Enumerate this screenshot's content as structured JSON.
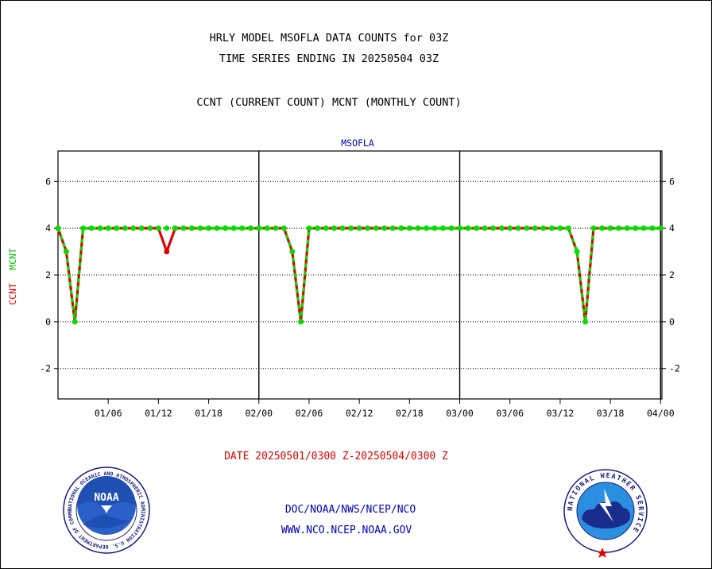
{
  "header": {
    "title_line1": "HRLY MODEL MSOFLA DATA COUNTS for 03Z",
    "title_line2": "TIME SERIES ENDING IN 20250504 03Z",
    "subtitle": "CCNT (CURRENT COUNT) MCNT (MONTHLY COUNT)"
  },
  "footer": {
    "date_range": "DATE 20250501/0300 Z-20250504/0300 Z",
    "org_path": "DOC/NOAA/NWS/NCEP/NCO",
    "website": "WWW.NCO.NCEP.NOAA.GOV"
  },
  "logos": {
    "noaa_text": "NOAA",
    "noaa_ring": "NATIONAL OCEANIC AND ATMOSPHERIC ADMINISTRATION U.S. DEPARTMENT OF COMMERCE",
    "nws_ring": "NATIONAL WEATHER SERVICE"
  },
  "colors": {
    "ccnt": "#e00000",
    "mcnt": "#00e000",
    "title": "#000000",
    "station_label": "#0000c0",
    "date_label": "#e00000",
    "footer_text": "#0000c0"
  },
  "chart_data": {
    "type": "line",
    "title": "MSOFLA",
    "ylabel_series": [
      "CCNT",
      "MCNT"
    ],
    "ylim": [
      -3.3,
      7.3
    ],
    "yticks": [
      -2,
      0,
      2,
      4,
      6
    ],
    "ytick_labels": [
      "-2",
      "0",
      "2",
      "4",
      "6"
    ],
    "x_unit": "3-hourly steps from 01/00",
    "xlim": [
      0,
      90.2
    ],
    "xtick_positions": [
      6,
      12,
      18,
      24,
      30,
      36,
      42,
      48,
      54,
      60,
      66,
      72,
      78,
      84
    ],
    "xtick_labels": [
      "01/06",
      "01/12",
      "01/18",
      "02/00",
      "02/06",
      "02/12",
      "02/18",
      "03/00",
      "03/06",
      "03/12",
      "03/18",
      "04/00"
    ],
    "xtick_label_positions": [
      2,
      4,
      6,
      8,
      10,
      12,
      14,
      16,
      18,
      20,
      22,
      24
    ],
    "day_boundaries": [
      8,
      16,
      24
    ],
    "grid": "horizontal dotted",
    "series": [
      {
        "name": "CCNT",
        "color": "#e00000",
        "x": [
          0,
          0.33,
          0.67,
          1,
          1.33,
          1.67,
          2,
          2.33,
          2.67,
          3,
          3.33,
          3.67,
          4,
          4.33,
          4.67,
          5,
          5.33,
          5.67,
          6,
          6.33,
          6.67,
          7,
          7.33,
          7.67,
          8,
          8.33,
          8.67,
          9,
          9.33,
          9.67,
          10,
          10.33,
          10.67,
          11,
          11.33,
          11.67,
          12,
          12.33,
          12.67,
          13,
          13.33,
          13.67,
          14,
          14.33,
          14.67,
          15,
          15.33,
          15.67,
          16,
          16.33,
          16.67,
          17,
          17.33,
          17.67,
          18,
          18.33,
          18.67,
          19,
          19.33,
          19.67,
          20,
          20.33,
          20.67,
          21,
          21.33,
          21.67,
          22,
          22.33,
          22.67,
          23,
          23.33,
          23.67,
          24
        ],
        "values": [
          4,
          3,
          0,
          4,
          4,
          4,
          4,
          4,
          4,
          4,
          4,
          4,
          4,
          3,
          4,
          4,
          4,
          4,
          4,
          4,
          4,
          4,
          4,
          4,
          4,
          4,
          4,
          4,
          3,
          0,
          4,
          4,
          4,
          4,
          4,
          4,
          4,
          4,
          4,
          4,
          4,
          4,
          4,
          4,
          4,
          4,
          4,
          4,
          4,
          4,
          4,
          4,
          4,
          4,
          4,
          4,
          4,
          4,
          4,
          4,
          4,
          4,
          3,
          0,
          4,
          4,
          4,
          4,
          4,
          4,
          4,
          4,
          4
        ]
      },
      {
        "name": "MCNT",
        "color": "#00e000",
        "x": [
          0,
          0.33,
          0.67,
          1,
          1.33,
          1.67,
          2,
          2.33,
          2.67,
          3,
          3.33,
          3.67,
          4,
          4.33,
          4.67,
          5,
          5.33,
          5.67,
          6,
          6.33,
          6.67,
          7,
          7.33,
          7.67,
          8,
          8.33,
          8.67,
          9,
          9.33,
          9.67,
          10,
          10.33,
          10.67,
          11,
          11.33,
          11.67,
          12,
          12.33,
          12.67,
          13,
          13.33,
          13.67,
          14,
          14.33,
          14.67,
          15,
          15.33,
          15.67,
          16,
          16.33,
          16.67,
          17,
          17.33,
          17.67,
          18,
          18.33,
          18.67,
          19,
          19.33,
          19.67,
          20,
          20.33,
          20.67,
          21,
          21.33,
          21.67,
          22,
          22.33,
          22.67,
          23,
          23.33,
          23.67,
          24
        ],
        "values": [
          4,
          3,
          0,
          4,
          4,
          4,
          4,
          4,
          4,
          4,
          4,
          4,
          4,
          4,
          4,
          4,
          4,
          4,
          4,
          4,
          4,
          4,
          4,
          4,
          4,
          4,
          4,
          4,
          3,
          0,
          4,
          4,
          4,
          4,
          4,
          4,
          4,
          4,
          4,
          4,
          4,
          4,
          4,
          4,
          4,
          4,
          4,
          4,
          4,
          4,
          4,
          4,
          4,
          4,
          4,
          4,
          4,
          4,
          4,
          4,
          4,
          4,
          3,
          0,
          4,
          4,
          4,
          4,
          4,
          4,
          4,
          4,
          4
        ]
      }
    ]
  }
}
